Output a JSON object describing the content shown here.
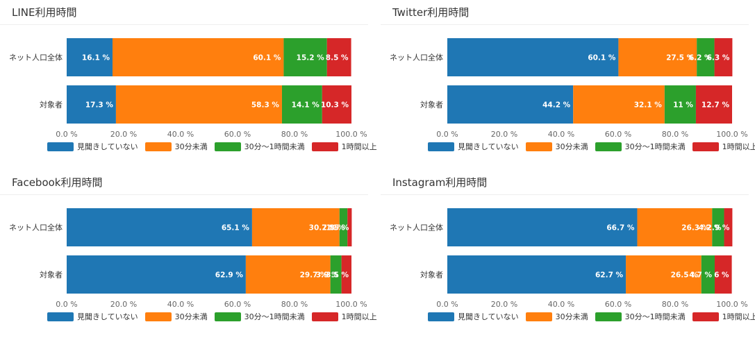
{
  "legend_colors": [
    "#1f77b4",
    "#ff7f0e",
    "#2ca02c",
    "#d62728"
  ],
  "chart_data": [
    {
      "type": "bar",
      "title": "LINE利用時間",
      "categories": [
        "ネット人口全体",
        "対象者"
      ],
      "x_ticks": [
        "0.0 %",
        "20.0 %",
        "40.0 %",
        "60.0 %",
        "80.0 %",
        "100.0 %"
      ],
      "xlim": [
        0,
        100
      ],
      "stacked": true,
      "orientation": "horizontal",
      "series": [
        {
          "name": "見聞きしていない",
          "values": [
            16.1,
            17.3
          ],
          "labels": [
            "16.1 %",
            "17.3 %"
          ]
        },
        {
          "name": "30分未満",
          "values": [
            60.1,
            58.3
          ],
          "labels": [
            "60.1 %",
            "58.3 %"
          ]
        },
        {
          "name": "30分〜1時間未満",
          "values": [
            15.2,
            14.1
          ],
          "labels": [
            "15.2 %",
            "14.1 %"
          ]
        },
        {
          "name": "1時間以上",
          "values": [
            8.5,
            10.3
          ],
          "labels": [
            "8.5 %",
            "10.3 %"
          ]
        }
      ]
    },
    {
      "type": "bar",
      "title": "Twitter利用時間",
      "categories": [
        "ネット人口全体",
        "対象者"
      ],
      "x_ticks": [
        "0.0 %",
        "20.0 %",
        "40.0 %",
        "60.0 %",
        "80.0 %",
        "100.0 %"
      ],
      "xlim": [
        0,
        100
      ],
      "stacked": true,
      "orientation": "horizontal",
      "series": [
        {
          "name": "見聞きしていない",
          "values": [
            60.1,
            44.2
          ],
          "labels": [
            "60.1 %",
            "44.2 %"
          ]
        },
        {
          "name": "30分未満",
          "values": [
            27.5,
            32.1
          ],
          "labels": [
            "27.5 %",
            "32.1 %"
          ]
        },
        {
          "name": "30分〜1時間未満",
          "values": [
            6.2,
            11
          ],
          "labels": [
            "6.2 %",
            "11 %"
          ]
        },
        {
          "name": "1時間以上",
          "values": [
            6.3,
            12.7
          ],
          "labels": [
            "6.3 %",
            "12.7 %"
          ]
        }
      ]
    },
    {
      "type": "bar",
      "title": "Facebook利用時間",
      "categories": [
        "ネット人口全体",
        "対象者"
      ],
      "x_ticks": [
        "0.0 %",
        "20.0 %",
        "40.0 %",
        "60.0 %",
        "80.0 %",
        "100.0 %"
      ],
      "xlim": [
        0,
        100
      ],
      "stacked": true,
      "orientation": "horizontal",
      "series": [
        {
          "name": "見聞きしていない",
          "values": [
            65.1,
            62.9
          ],
          "labels": [
            "65.1 %",
            "62.9 %"
          ]
        },
        {
          "name": "30分未満",
          "values": [
            30.7,
            29.7
          ],
          "labels": [
            "30.7 %",
            "29.7 %"
          ]
        },
        {
          "name": "30分〜1時間未満",
          "values": [
            2.8,
            3.9
          ],
          "labels": [
            "2.8 %",
            "3.9 %"
          ]
        },
        {
          "name": "1時間以上",
          "values": [
            1.5,
            3.5
          ],
          "labels": [
            "1.5 %",
            "3.5 %"
          ]
        }
      ]
    },
    {
      "type": "bar",
      "title": "Instagram利用時間",
      "categories": [
        "ネット人口全体",
        "対象者"
      ],
      "x_ticks": [
        "0.0 %",
        "20.0 %",
        "40.0 %",
        "60.0 %",
        "80.0 %",
        "100.0 %"
      ],
      "xlim": [
        0,
        100
      ],
      "stacked": true,
      "orientation": "horizontal",
      "series": [
        {
          "name": "見聞きしていない",
          "values": [
            66.7,
            62.7
          ],
          "labels": [
            "66.7 %",
            "62.7 %"
          ]
        },
        {
          "name": "30分未満",
          "values": [
            26.3,
            26.5
          ],
          "labels": [
            "26.3 %",
            "26.5 %"
          ]
        },
        {
          "name": "30分〜1時間未満",
          "values": [
            4.2,
            4.7
          ],
          "labels": [
            "4.2 %",
            "4.7 %"
          ]
        },
        {
          "name": "1時間以上",
          "values": [
            2.9,
            6
          ],
          "labels": [
            "2.9 %",
            "6 %"
          ]
        }
      ]
    }
  ]
}
